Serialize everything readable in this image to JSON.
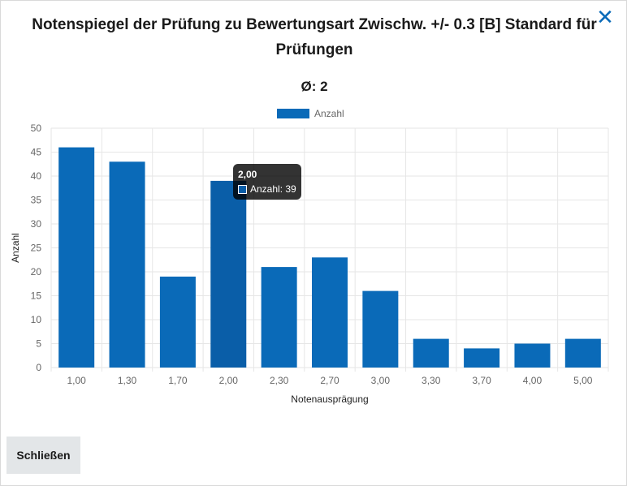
{
  "dialog": {
    "title": "Notenspiegel der Prüfung zu Bewertungsart Zwischw. +/- 0.3 [B] Standard für Prüfungen",
    "average": "Ø: 2",
    "close_icon": "close-icon",
    "close_button_label": "Schließen"
  },
  "tooltip": {
    "title": "2,00",
    "label": "Anzahl: 39"
  },
  "colors": {
    "bar": "#0a6ab8",
    "bar_hover": "#0a5ea8",
    "grid": "#e6e6e6",
    "axis_text": "#666666"
  },
  "chart_data": {
    "type": "bar",
    "categories": [
      "1,00",
      "1,30",
      "1,70",
      "2,00",
      "2,30",
      "2,70",
      "3,00",
      "3,30",
      "3,70",
      "4,00",
      "5,00"
    ],
    "series": [
      {
        "name": "Anzahl",
        "values": [
          46,
          43,
          19,
          39,
          21,
          23,
          16,
          6,
          4,
          5,
          6
        ]
      }
    ],
    "xlabel": "Notenausprägung",
    "ylabel": "Anzahl",
    "ylim": [
      0,
      50
    ],
    "yticks": [
      0,
      5,
      10,
      15,
      20,
      25,
      30,
      35,
      40,
      45,
      50
    ],
    "highlighted_category": "2,00",
    "grid": true,
    "legend": "top-center"
  }
}
